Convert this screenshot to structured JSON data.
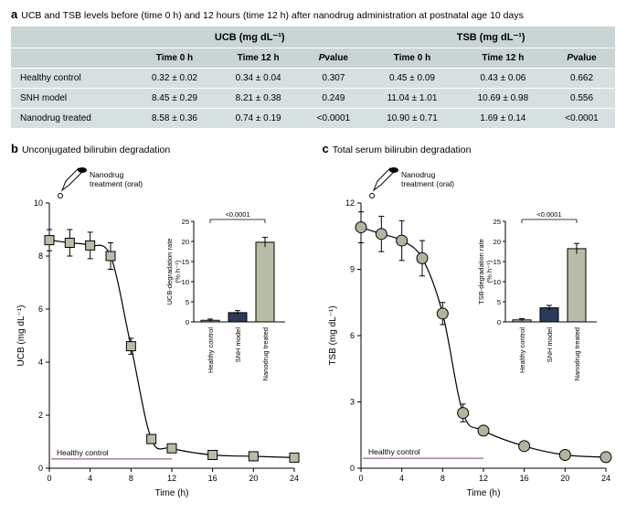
{
  "panel_a": {
    "label": "a",
    "caption": "UCB and TSB levels before (time 0 h) and 12 hours (time 12 h) after nanodrug administration at postnatal age 10 days",
    "group_headers": [
      "UCB (mg dL⁻¹)",
      "TSB (mg dL⁻¹)"
    ],
    "sub_headers": [
      "Time 0 h",
      "Time 12 h",
      "Pvalue",
      "Time 0 h",
      "Time 12 h",
      "Pvalue"
    ],
    "rows": [
      {
        "label": "Healthy control",
        "cells": [
          "0.32 ± 0.02",
          "0.34 ± 0.04",
          "0.307",
          "0.45 ± 0.09",
          "0.43 ± 0.06",
          "0.662"
        ]
      },
      {
        "label": "SNH model",
        "cells": [
          "8.45 ± 0.29",
          "8.21 ± 0.38",
          "0.249",
          "11.04 ± 1.01",
          "10.69 ± 0.98",
          "0.556"
        ]
      },
      {
        "label": "Nanodrug treated",
        "cells": [
          "8.58 ± 0.36",
          "0.74 ± 0.19",
          "<0.0001",
          "10.90 ± 0.71",
          "1.69 ± 0.14",
          "<0.0001"
        ]
      }
    ]
  },
  "panel_b": {
    "label": "b",
    "title": "Unconjugated bilirubin degradation",
    "ylabel": "UCB (mg dL⁻¹)",
    "xlabel": "Time (h)",
    "ymax": 10,
    "ytick_step": 2,
    "xmax": 24,
    "xtick_step": 4,
    "marker_shape": "square",
    "marker_color": "#b8bda8",
    "anno": "Nanodrug\ntreatment (oral)",
    "hc_label": "Healthy control",
    "hc_y": 0.35,
    "data": [
      {
        "x": 0,
        "y": 8.6,
        "err": 0.4
      },
      {
        "x": 2,
        "y": 8.5,
        "err": 0.5
      },
      {
        "x": 4,
        "y": 8.4,
        "err": 0.5
      },
      {
        "x": 6,
        "y": 8.0,
        "err": 0.5
      },
      {
        "x": 8,
        "y": 4.6,
        "err": 0.3
      },
      {
        "x": 10,
        "y": 1.1,
        "err": 0.15
      },
      {
        "x": 12,
        "y": 0.75,
        "err": 0.1
      },
      {
        "x": 16,
        "y": 0.5,
        "err": 0.08
      },
      {
        "x": 20,
        "y": 0.45,
        "err": 0.06
      },
      {
        "x": 24,
        "y": 0.4,
        "err": 0.05
      }
    ],
    "inset": {
      "ylabel": "UCB-degradation rate\n(% h⁻¹)",
      "ymax": 25,
      "ytick_step": 5,
      "pvalue": "<0.0001",
      "bars": [
        {
          "label": "Healthy control",
          "value": 0.4,
          "err": 0.3,
          "color": "#b8bda8"
        },
        {
          "label": "SNH model",
          "value": 2.3,
          "err": 0.5,
          "color": "#2a3a5a"
        },
        {
          "label": "Nanodrug treated",
          "value": 19.8,
          "err": 1.2,
          "color": "#b8bda8"
        }
      ]
    }
  },
  "panel_c": {
    "label": "c",
    "title": "Total serum bilirubin degradation",
    "ylabel": "TSB (mg dL⁻¹)",
    "xlabel": "Time (h)",
    "ymax": 12,
    "ytick_step": 3,
    "xmax": 24,
    "xtick_step": 4,
    "marker_shape": "circle",
    "marker_color": "#b0b5a0",
    "anno": "Nanodrug\ntreatment (oral)",
    "hc_label": "Healthy control",
    "hc_y": 0.45,
    "data": [
      {
        "x": 0,
        "y": 10.9,
        "err": 0.7
      },
      {
        "x": 2,
        "y": 10.6,
        "err": 0.8
      },
      {
        "x": 4,
        "y": 10.3,
        "err": 0.9
      },
      {
        "x": 6,
        "y": 9.5,
        "err": 0.8
      },
      {
        "x": 8,
        "y": 7.0,
        "err": 0.5
      },
      {
        "x": 10,
        "y": 2.5,
        "err": 0.4
      },
      {
        "x": 12,
        "y": 1.7,
        "err": 0.2
      },
      {
        "x": 16,
        "y": 1.0,
        "err": 0.15
      },
      {
        "x": 20,
        "y": 0.6,
        "err": 0.1
      },
      {
        "x": 24,
        "y": 0.5,
        "err": 0.08
      }
    ],
    "inset": {
      "ylabel": "TSB-degradation rate\n(% h⁻¹)",
      "ymax": 25,
      "ytick_step": 5,
      "pvalue": "<0.0001",
      "bars": [
        {
          "label": "Healthy control",
          "value": 0.5,
          "err": 0.3,
          "color": "#b8bda8"
        },
        {
          "label": "SNH model",
          "value": 3.5,
          "err": 0.6,
          "color": "#2a3a5a"
        },
        {
          "label": "Nanodrug treated",
          "value": 18.2,
          "err": 1.3,
          "color": "#b8bda8"
        }
      ]
    }
  }
}
